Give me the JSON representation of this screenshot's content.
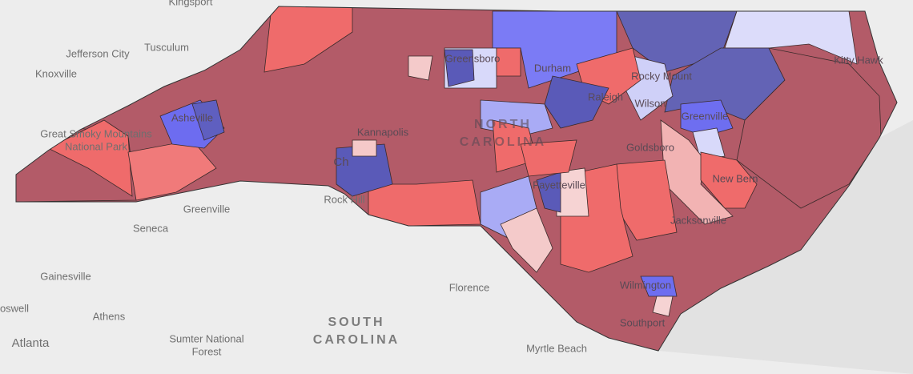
{
  "labels": [
    "Kingsport",
    "Tusculum",
    "Jefferson City",
    "Knoxville",
    "Great Smoky Mountains",
    "National Park",
    "Asheville",
    "Kannapolis",
    "Rock Hill",
    "Greenville",
    "Seneca",
    "Gainesville",
    "oswell",
    "Athens",
    "Atlanta",
    "Sumter National",
    "Forest",
    "SOUTH",
    "CAROLINA",
    "Florence",
    "Myrtle Beach",
    "Southport",
    "Wilmington",
    "Jacksonville",
    "New Bern",
    "Goldsboro",
    "Greenville",
    "Wilson",
    "Rocky Mount",
    "Raleigh",
    "Durham",
    "Greensboro",
    "NORTH",
    "CAROLINA",
    "Fayetteville",
    "Kitty Hawk",
    "Ch"
  ]
}
